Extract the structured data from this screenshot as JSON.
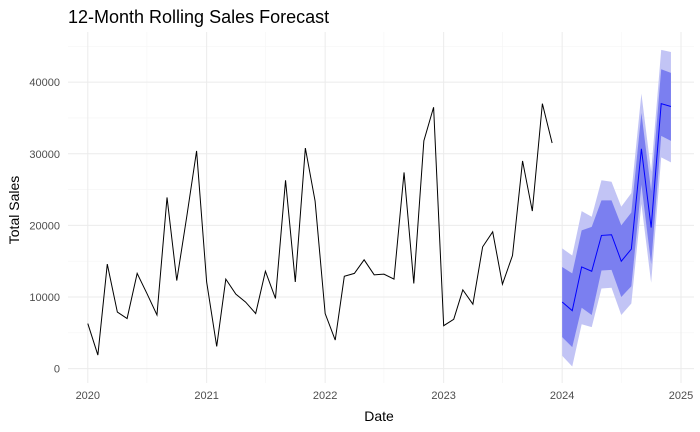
{
  "chart_data": {
    "type": "line",
    "title": "12-Month Rolling Sales Forecast",
    "xlabel": "Date",
    "ylabel": "Total Sales",
    "xlim": [
      "2019-11-01",
      "2025-02-10"
    ],
    "ylim": [
      -2000,
      47000
    ],
    "x_ticks": [
      {
        "date": "2020-01-01",
        "label": "2020"
      },
      {
        "date": "2021-01-01",
        "label": "2021"
      },
      {
        "date": "2022-01-01",
        "label": "2022"
      },
      {
        "date": "2023-01-01",
        "label": "2023"
      },
      {
        "date": "2024-01-01",
        "label": "2024"
      },
      {
        "date": "2025-01-01",
        "label": "2025"
      }
    ],
    "x_minor_ticks": [
      "2020-07-01",
      "2021-07-01",
      "2022-07-01",
      "2023-07-01",
      "2024-07-01"
    ],
    "y_ticks": [
      0,
      10000,
      20000,
      30000,
      40000
    ],
    "y_minor_ticks": [
      5000,
      15000,
      25000,
      35000,
      45000
    ],
    "y_tick_labels": [
      "0",
      "10000",
      "20000",
      "30000",
      "40000"
    ],
    "grid": true,
    "colors": {
      "history_line": "#000000",
      "forecast_line": "#0000ff",
      "band_95": "#c2c4f5",
      "band_80": "#7b7ff0",
      "grid_major": "#ebebeb",
      "grid_minor": "#f5f5f5"
    },
    "history": {
      "dates": [
        "2020-01",
        "2020-02",
        "2020-03",
        "2020-04",
        "2020-05",
        "2020-06",
        "2020-07",
        "2020-08",
        "2020-09",
        "2020-10",
        "2020-11",
        "2020-12",
        "2021-01",
        "2021-02",
        "2021-03",
        "2021-04",
        "2021-05",
        "2021-06",
        "2021-07",
        "2021-08",
        "2021-09",
        "2021-10",
        "2021-11",
        "2021-12",
        "2022-01",
        "2022-02",
        "2022-03",
        "2022-04",
        "2022-05",
        "2022-06",
        "2022-07",
        "2022-08",
        "2022-09",
        "2022-10",
        "2022-11",
        "2022-12",
        "2023-01",
        "2023-02",
        "2023-03",
        "2023-04",
        "2023-05",
        "2023-06",
        "2023-07",
        "2023-08",
        "2023-09",
        "2023-10",
        "2023-11",
        "2023-12"
      ],
      "values": [
        6300,
        1900,
        14600,
        7900,
        7000,
        13300,
        10500,
        7500,
        23900,
        12300,
        21300,
        30400,
        12100,
        3100,
        12500,
        10400,
        9300,
        7700,
        13600,
        9800,
        26300,
        12100,
        30800,
        23400,
        7700,
        4000,
        12900,
        13300,
        15200,
        13100,
        13200,
        12500,
        27400,
        11900,
        31800,
        36500,
        6000,
        6900,
        11000,
        9000,
        17000,
        19100,
        11800,
        15800,
        29000,
        22000,
        37000,
        31500
      ]
    },
    "forecast": {
      "dates": [
        "2024-01",
        "2024-02",
        "2024-03",
        "2024-04",
        "2024-05",
        "2024-06",
        "2024-07",
        "2024-08",
        "2024-09",
        "2024-10",
        "2024-11",
        "2024-12"
      ],
      "mean": [
        9300,
        8100,
        14200,
        13600,
        18600,
        18700,
        15000,
        16700,
        30700,
        19700,
        37000,
        36600
      ],
      "lower80": [
        4400,
        3000,
        8500,
        7500,
        13700,
        13800,
        10000,
        11500,
        25700,
        14600,
        32500,
        31800
      ],
      "upper80": [
        14200,
        13300,
        19300,
        19800,
        23500,
        23500,
        20000,
        21800,
        35700,
        24800,
        41800,
        41300
      ],
      "lower95": [
        1800,
        300,
        6200,
        5800,
        11200,
        11300,
        7500,
        9100,
        23000,
        12000,
        29500,
        28800
      ],
      "upper95": [
        16800,
        15800,
        22000,
        21200,
        26300,
        26100,
        22600,
        24500,
        38400,
        27500,
        44500,
        44200
      ]
    }
  }
}
